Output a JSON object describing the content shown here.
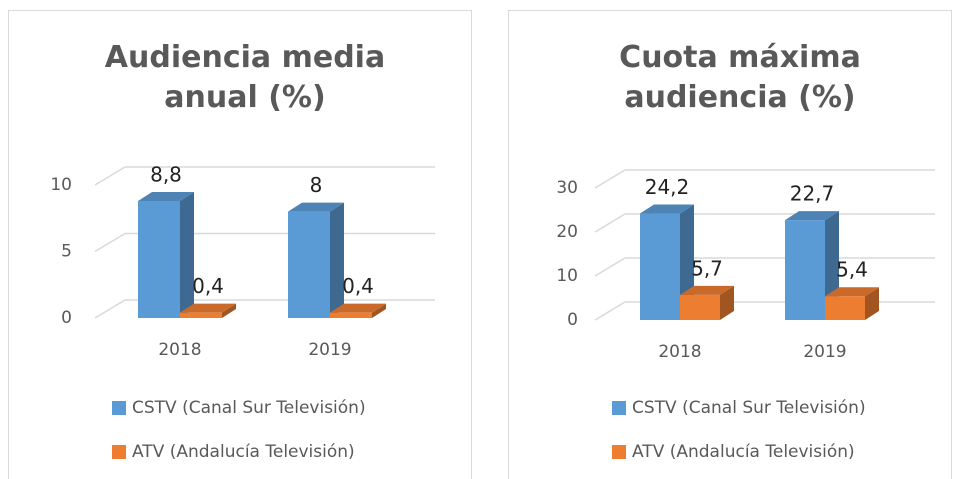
{
  "chart_data": [
    {
      "type": "bar3d",
      "title": "Audiencia media anual (%)",
      "categories": [
        "2018",
        "2019"
      ],
      "series": [
        {
          "name": "CSTV (Canal Sur Televisión)",
          "color": "#5b9bd5",
          "values": [
            8.8,
            8
          ],
          "value_labels": [
            "8,8",
            "8"
          ]
        },
        {
          "name": "ATV (Andalucía Televisión)",
          "color": "#ed7d31",
          "values": [
            0.4,
            0.4
          ],
          "value_labels": [
            "0,4",
            "0,4"
          ]
        }
      ],
      "ylim": [
        0,
        10
      ],
      "yticks": [
        0,
        5,
        10
      ],
      "grid": true
    },
    {
      "type": "bar3d",
      "title": "Cuota máxima audiencia (%)",
      "categories": [
        "2018",
        "2019"
      ],
      "series": [
        {
          "name": "CSTV (Canal Sur Televisión)",
          "color": "#5b9bd5",
          "values": [
            24.2,
            22.7
          ],
          "value_labels": [
            "24,2",
            "22,7"
          ]
        },
        {
          "name": "ATV (Andalucía Televisión)",
          "color": "#ed7d31",
          "values": [
            5.7,
            5.4
          ],
          "value_labels": [
            "5,7",
            "5,4"
          ]
        }
      ],
      "ylim": [
        0,
        30
      ],
      "yticks": [
        0,
        10,
        20,
        30
      ],
      "grid": true
    }
  ]
}
